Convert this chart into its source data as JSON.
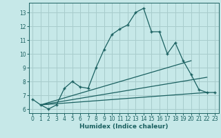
{
  "xlabel": "Humidex (Indice chaleur)",
  "bg_color": "#c6e8e8",
  "grid_color": "#a8cccc",
  "line_color": "#1a6060",
  "xlim": [
    -0.5,
    23.5
  ],
  "ylim": [
    5.7,
    13.7
  ],
  "yticks": [
    6,
    7,
    8,
    9,
    10,
    11,
    12,
    13
  ],
  "xticks": [
    0,
    1,
    2,
    3,
    4,
    5,
    6,
    7,
    8,
    9,
    10,
    11,
    12,
    13,
    14,
    15,
    16,
    17,
    18,
    19,
    20,
    21,
    22,
    23
  ],
  "line1_x": [
    0,
    1,
    2,
    3,
    4,
    5,
    6,
    7,
    8,
    9,
    10,
    11,
    12,
    13,
    14,
    15,
    16,
    17,
    18,
    19,
    20,
    21,
    22,
    23
  ],
  "line1_y": [
    6.7,
    6.3,
    6.0,
    6.3,
    7.5,
    8.0,
    7.6,
    7.5,
    9.0,
    10.3,
    11.4,
    11.8,
    12.1,
    13.0,
    13.3,
    11.6,
    11.6,
    10.0,
    10.8,
    9.5,
    8.5,
    7.4,
    7.2,
    7.2
  ],
  "line2_x": [
    1,
    22
  ],
  "line2_y": [
    6.3,
    7.2
  ],
  "line3_x": [
    1,
    22
  ],
  "line3_y": [
    6.3,
    8.3
  ],
  "line4_x": [
    1,
    20
  ],
  "line4_y": [
    6.3,
    9.5
  ]
}
